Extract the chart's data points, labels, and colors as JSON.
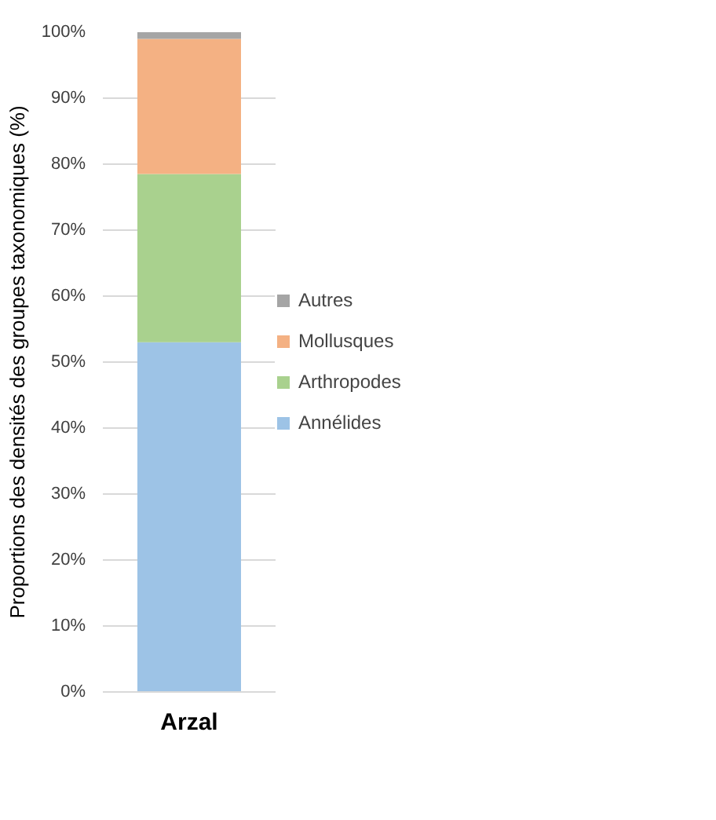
{
  "chart_data": {
    "type": "bar",
    "stacked": true,
    "categories": [
      "Arzal"
    ],
    "ylabel": "Proportions des densités des groupes taxonomiques (%)",
    "series": [
      {
        "name": "Annélides",
        "color": "#9dc3e6",
        "values": [
          53
        ]
      },
      {
        "name": "Arthropodes",
        "color": "#a9d18e",
        "values": [
          25.5
        ]
      },
      {
        "name": "Mollusques",
        "color": "#f4b183",
        "values": [
          20.5
        ]
      },
      {
        "name": "Autres",
        "color": "#a5a5a5",
        "values": [
          1
        ]
      }
    ],
    "ylim": [
      0,
      100
    ],
    "yticks": [
      {
        "value": 0,
        "label": "0%"
      },
      {
        "value": 10,
        "label": "10%"
      },
      {
        "value": 20,
        "label": "20%"
      },
      {
        "value": 30,
        "label": "30%"
      },
      {
        "value": 40,
        "label": "40%"
      },
      {
        "value": 50,
        "label": "50%"
      },
      {
        "value": 60,
        "label": "60%"
      },
      {
        "value": 70,
        "label": "70%"
      },
      {
        "value": 80,
        "label": "80%"
      },
      {
        "value": 90,
        "label": "90%"
      },
      {
        "value": 100,
        "label": "100%"
      }
    ],
    "grid": "y",
    "legend": "right"
  }
}
